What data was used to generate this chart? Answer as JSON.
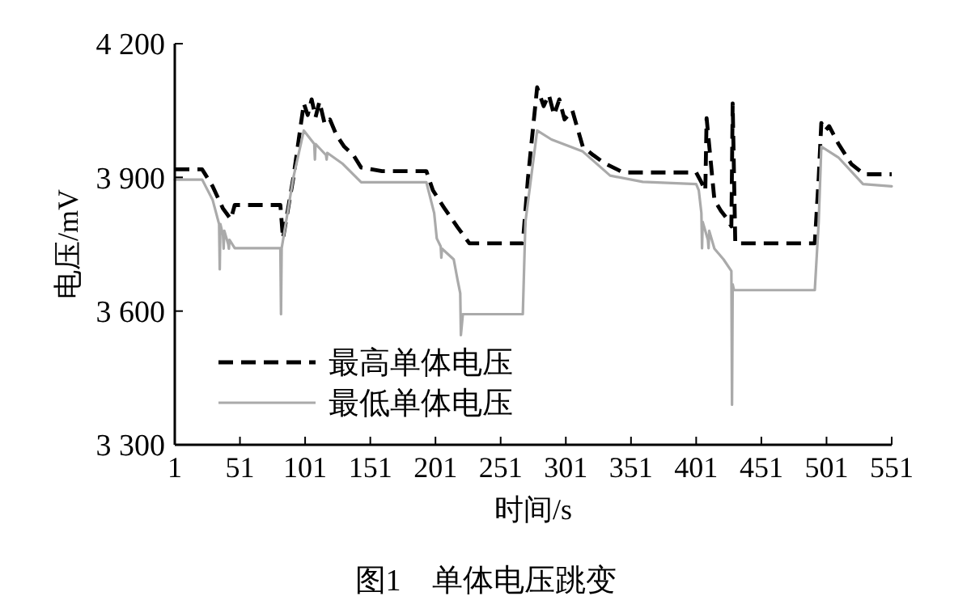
{
  "chart_data": {
    "type": "line",
    "title": "图1　单体电压跳变",
    "xlabel": "时间/s",
    "ylabel": "电压/mV",
    "xlim": [
      1,
      551
    ],
    "xticks": [
      1,
      51,
      101,
      151,
      201,
      251,
      301,
      351,
      401,
      451,
      501,
      551
    ],
    "ylim": [
      3300,
      4200
    ],
    "yticks": [
      {
        "value": 3300,
        "label": "3 300"
      },
      {
        "value": 3600,
        "label": "3 600"
      },
      {
        "value": 3900,
        "label": "3 900"
      },
      {
        "value": 4200,
        "label": "4 200"
      }
    ],
    "grid": false,
    "legend": "bottom left",
    "marker": "none",
    "series": [
      {
        "name": "最高单体电压",
        "color": "#000000",
        "line_style": "dashed",
        "x": [
          1,
          22,
          30,
          38,
          44,
          47,
          82,
          84,
          92,
          100,
          103,
          106,
          109,
          112,
          116,
          120,
          125,
          131,
          138,
          144,
          160,
          194,
          199,
          208,
          218,
          227,
          268,
          272,
          279,
          284,
          288,
          292,
          296,
          300,
          306,
          314,
          322,
          330,
          345,
          401,
          405,
          408,
          409,
          415,
          420,
          425,
          428,
          429,
          431,
          440,
          492,
          495,
          497,
          500,
          503,
          510,
          520,
          530,
          551
        ],
        "values": [
          3918,
          3918,
          3880,
          3830,
          3806,
          3838,
          3838,
          3763,
          3900,
          4066,
          4040,
          4075,
          4035,
          4070,
          4020,
          4030,
          3995,
          3969,
          3950,
          3922,
          3914,
          3914,
          3871,
          3830,
          3788,
          3752,
          3752,
          3900,
          4102,
          4060,
          4085,
          4040,
          4075,
          4030,
          4050,
          3969,
          3950,
          3933,
          3911,
          3911,
          3889,
          3870,
          4033,
          3849,
          3825,
          3806,
          3790,
          4066,
          3752,
          3752,
          3752,
          3900,
          4022,
          4005,
          4015,
          3976,
          3930,
          3907,
          3907
        ]
      },
      {
        "name": "最低单体电压",
        "color": "#aaaaaa",
        "line_style": "solid",
        "x": [
          1,
          22,
          30,
          35,
          35.5,
          36,
          38,
          38.5,
          39,
          42,
          42.5,
          43,
          47,
          82,
          82.5,
          83,
          92,
          100,
          108,
          108.5,
          109,
          117,
          117.5,
          118,
          130,
          144,
          194,
          200,
          202,
          205,
          205.5,
          206,
          215,
          218,
          220,
          220.5,
          222,
          268,
          270,
          279,
          290,
          314,
          335,
          360,
          401,
          403,
          405,
          405.5,
          406,
          410,
          410.5,
          411,
          415,
          422,
          428,
          428.5,
          429,
          430,
          492,
          495,
          497,
          510,
          529,
          551
        ],
        "values": [
          3895,
          3895,
          3850,
          3795,
          3694,
          3795,
          3770,
          3740,
          3780,
          3750,
          3740,
          3760,
          3741,
          3741,
          3593,
          3741,
          3900,
          4005,
          3975,
          3940,
          3975,
          3950,
          3940,
          3955,
          3930,
          3889,
          3889,
          3820,
          3763,
          3745,
          3720,
          3740,
          3716,
          3669,
          3640,
          3546,
          3593,
          3593,
          3800,
          4005,
          3985,
          3958,
          3904,
          3890,
          3885,
          3871,
          3820,
          3741,
          3800,
          3760,
          3741,
          3780,
          3740,
          3716,
          3690,
          3390,
          3660,
          3647,
          3647,
          3800,
          3969,
          3945,
          3885,
          3880
        ]
      }
    ]
  }
}
